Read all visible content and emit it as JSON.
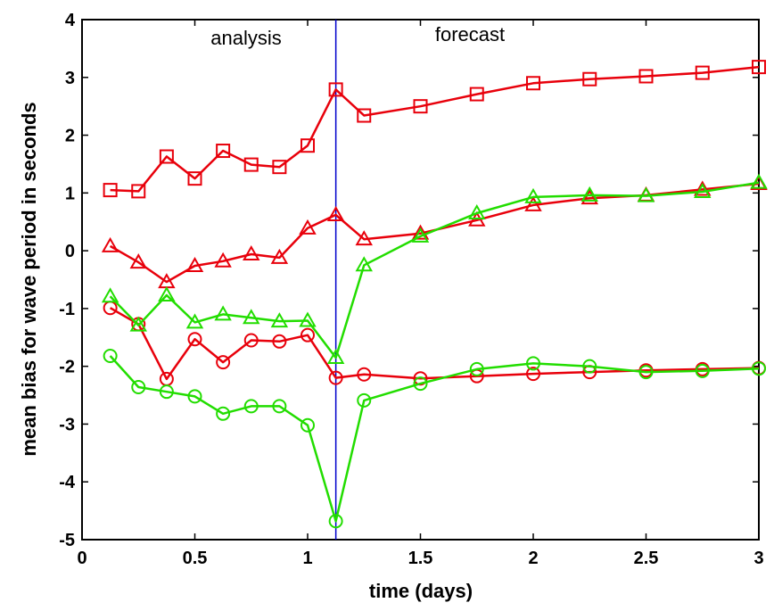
{
  "chart_data": {
    "type": "line",
    "xlabel": "time (days)",
    "ylabel": "mean bias for wave period in seconds",
    "xlim": [
      0,
      3
    ],
    "ylim": [
      -5,
      4
    ],
    "x_ticks": [
      "0",
      "0.5",
      "1",
      "1.5",
      "2",
      "2.5",
      "3"
    ],
    "y_ticks": [
      "-5",
      "-4",
      "-3",
      "-2",
      "-1",
      "0",
      "1",
      "2",
      "3",
      "4"
    ],
    "grid": false,
    "legend": "none",
    "annotations": {
      "left": "analysis",
      "right": "forecast"
    },
    "divider_x": 1.125,
    "divider_color": "#0000cc",
    "series": [
      {
        "color": "#e8000b",
        "marker": "square",
        "x": [
          0.125,
          0.25,
          0.375,
          0.5,
          0.625,
          0.75,
          0.875,
          1.0,
          1.125,
          1.25,
          1.5,
          1.75,
          2.0,
          2.25,
          2.5,
          2.75,
          3.0
        ],
        "y": [
          1.05,
          1.03,
          1.63,
          1.25,
          1.73,
          1.49,
          1.45,
          1.82,
          2.79,
          2.34,
          2.5,
          2.71,
          2.9,
          2.97,
          3.02,
          3.08,
          3.18
        ]
      },
      {
        "color": "#e8000b",
        "marker": "triangle",
        "x": [
          0.125,
          0.25,
          0.375,
          0.5,
          0.625,
          0.75,
          0.875,
          1.0,
          1.125,
          1.25,
          1.5,
          1.75,
          2.0,
          2.25,
          2.5,
          2.75,
          3.0
        ],
        "y": [
          0.08,
          -0.2,
          -0.54,
          -0.26,
          -0.18,
          -0.06,
          -0.12,
          0.39,
          0.62,
          0.2,
          0.3,
          0.53,
          0.79,
          0.91,
          0.96,
          1.06,
          1.16
        ]
      },
      {
        "color": "#e8000b",
        "marker": "circle",
        "x": [
          0.125,
          0.25,
          0.375,
          0.5,
          0.625,
          0.75,
          0.875,
          1.0,
          1.125,
          1.25,
          1.5,
          1.75,
          2.0,
          2.25,
          2.5,
          2.75,
          3.0
        ],
        "y": [
          -0.99,
          -1.27,
          -2.22,
          -1.53,
          -1.93,
          -1.55,
          -1.57,
          -1.46,
          -2.2,
          -2.14,
          -2.21,
          -2.17,
          -2.13,
          -2.1,
          -2.07,
          -2.05,
          -2.03
        ]
      },
      {
        "color": "#22dd00",
        "marker": "triangle",
        "x": [
          0.125,
          0.25,
          0.375,
          0.5,
          0.625,
          0.75,
          0.875,
          1.0,
          1.125,
          1.25,
          1.5,
          1.75,
          2.0,
          2.25,
          2.5,
          2.75,
          3.0
        ],
        "y": [
          -0.79,
          -1.29,
          -0.77,
          -1.24,
          -1.1,
          -1.16,
          -1.22,
          -1.21,
          -1.85,
          -0.25,
          0.25,
          0.65,
          0.93,
          0.96,
          0.95,
          1.02,
          1.18
        ]
      },
      {
        "color": "#22dd00",
        "marker": "circle",
        "x": [
          0.125,
          0.25,
          0.375,
          0.5,
          0.625,
          0.75,
          0.875,
          1.0,
          1.125,
          1.25,
          1.5,
          1.75,
          2.0,
          2.25,
          2.5,
          2.75,
          3.0
        ],
        "y": [
          -1.82,
          -2.36,
          -2.44,
          -2.52,
          -2.82,
          -2.69,
          -2.69,
          -3.02,
          -4.68,
          -2.59,
          -2.3,
          -2.05,
          -1.95,
          -2.0,
          -2.1,
          -2.08,
          -2.04
        ]
      }
    ]
  }
}
